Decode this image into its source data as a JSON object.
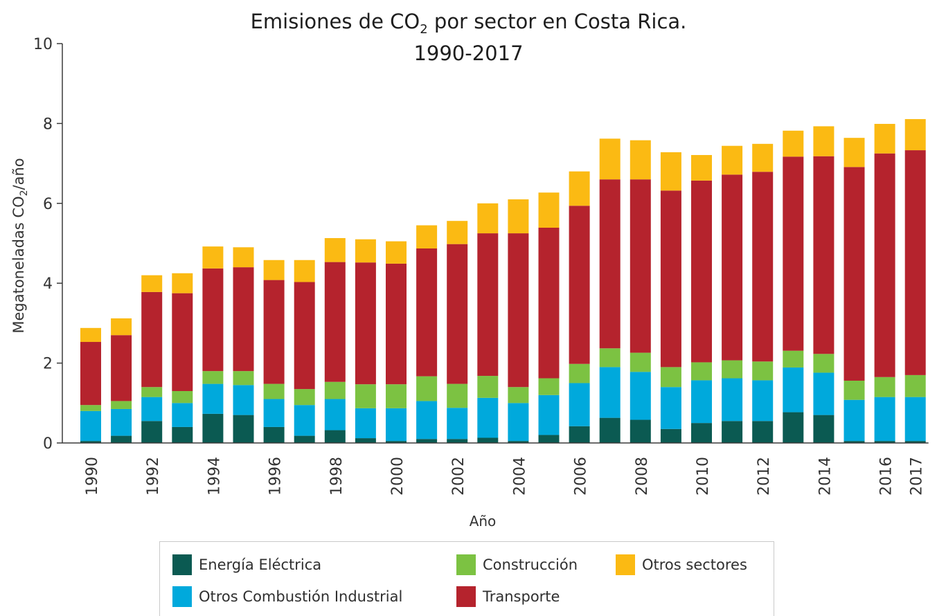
{
  "chart_data": {
    "type": "bar",
    "stacked": true,
    "title": "Emisiones de CO2 por sector en Costa Rica.",
    "title_line1_prefix": "Emisiones de CO",
    "title_line1_sub": "2",
    "title_line1_suffix": " por sector en Costa Rica.",
    "subtitle": "1990-2017",
    "xlabel": "Año",
    "ylabel": "Megatoneladas CO2/año",
    "ylabel_prefix": "Megatoneladas CO",
    "ylabel_sub": "2",
    "ylabel_suffix": "/año",
    "ylim": [
      0,
      10
    ],
    "yticks": [
      0,
      2,
      4,
      6,
      8,
      10
    ],
    "grid": false,
    "legend_position": "bottom",
    "categories": [
      "1990",
      "1991",
      "1992",
      "1993",
      "1994",
      "1995",
      "1996",
      "1997",
      "1998",
      "1999",
      "2000",
      "2001",
      "2002",
      "2003",
      "2004",
      "2005",
      "2006",
      "2007",
      "2008",
      "2009",
      "2010",
      "2011",
      "2012",
      "2013",
      "2014",
      "2015",
      "2016",
      "2017"
    ],
    "xtick_labels": [
      "1990",
      "1992",
      "1994",
      "1996",
      "1998",
      "2000",
      "2002",
      "2004",
      "2006",
      "2008",
      "2010",
      "2012",
      "2014",
      "2016",
      "2017"
    ],
    "series": [
      {
        "name": "Energía Eléctrica",
        "color": "#0b5a52",
        "values": [
          0.05,
          0.18,
          0.55,
          0.4,
          0.73,
          0.7,
          0.4,
          0.18,
          0.32,
          0.12,
          0.05,
          0.1,
          0.1,
          0.13,
          0.05,
          0.2,
          0.42,
          0.63,
          0.58,
          0.35,
          0.5,
          0.55,
          0.55,
          0.77,
          0.7,
          0.05,
          0.05,
          0.05
        ]
      },
      {
        "name": "Otros Combustión Industrial",
        "color": "#00a9dc",
        "values": [
          0.75,
          0.67,
          0.6,
          0.6,
          0.75,
          0.75,
          0.7,
          0.77,
          0.78,
          0.75,
          0.82,
          0.95,
          0.78,
          1.0,
          0.95,
          1.0,
          1.08,
          1.27,
          1.2,
          1.05,
          1.07,
          1.07,
          1.02,
          1.12,
          1.06,
          1.03,
          1.1,
          1.1
        ]
      },
      {
        "name": "Construcción",
        "color": "#7cc242",
        "values": [
          0.15,
          0.2,
          0.25,
          0.3,
          0.32,
          0.35,
          0.38,
          0.4,
          0.43,
          0.6,
          0.6,
          0.62,
          0.6,
          0.55,
          0.4,
          0.42,
          0.48,
          0.47,
          0.48,
          0.5,
          0.45,
          0.45,
          0.47,
          0.42,
          0.47,
          0.48,
          0.5,
          0.55
        ]
      },
      {
        "name": "Transporte",
        "color": "#b5232d",
        "values": [
          1.58,
          1.65,
          2.38,
          2.45,
          2.57,
          2.6,
          2.6,
          2.68,
          3.0,
          3.05,
          3.02,
          3.2,
          3.5,
          3.57,
          3.85,
          3.77,
          3.96,
          4.23,
          4.34,
          4.42,
          4.55,
          4.65,
          4.75,
          4.86,
          4.95,
          5.35,
          5.6,
          5.63
        ]
      },
      {
        "name": "Otros sectores",
        "color": "#fbba13",
        "values": [
          0.35,
          0.42,
          0.42,
          0.5,
          0.55,
          0.5,
          0.5,
          0.55,
          0.6,
          0.58,
          0.56,
          0.58,
          0.58,
          0.75,
          0.85,
          0.88,
          0.86,
          1.02,
          0.98,
          0.96,
          0.64,
          0.72,
          0.7,
          0.65,
          0.75,
          0.73,
          0.74,
          0.78
        ]
      }
    ]
  }
}
